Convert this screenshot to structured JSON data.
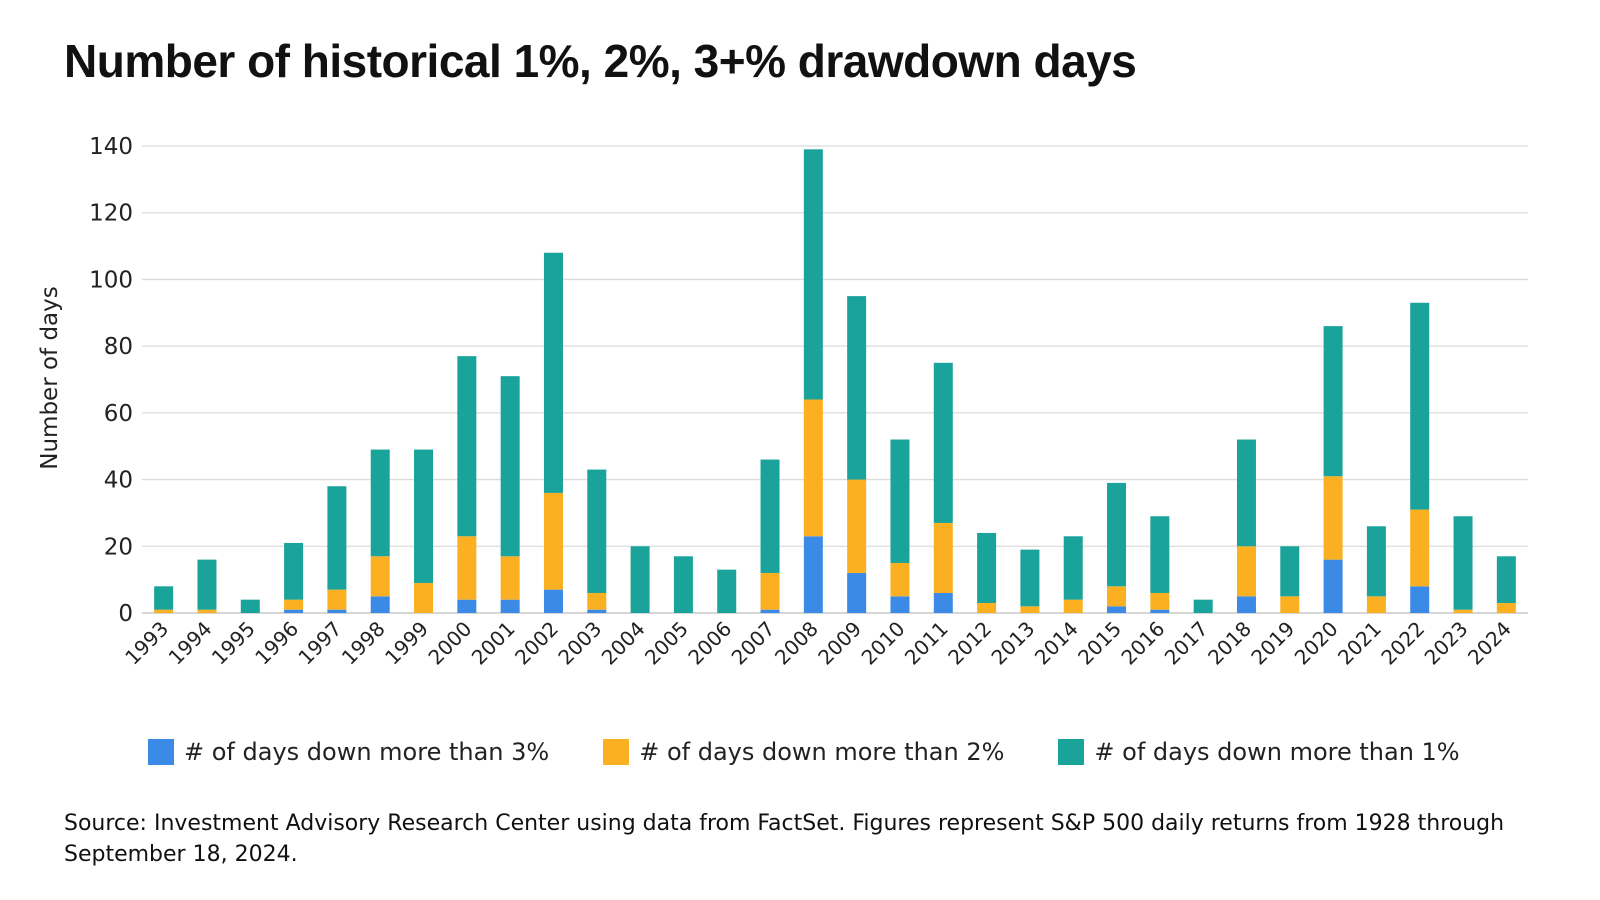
{
  "chart_data": {
    "type": "bar",
    "stacked": true,
    "title": "Number of historical 1%, 2%, 3+% drawdown days",
    "xlabel": "",
    "ylabel": "Number of days",
    "ylim": [
      0,
      140
    ],
    "yticks": [
      0,
      20,
      40,
      60,
      80,
      100,
      120,
      140
    ],
    "grid": true,
    "legend_position": "bottom",
    "categories": [
      "1993",
      "1994",
      "1995",
      "1996",
      "1997",
      "1998",
      "1999",
      "2000",
      "2001",
      "2002",
      "2003",
      "2004",
      "2005",
      "2006",
      "2007",
      "2008",
      "2009",
      "2010",
      "2011",
      "2012",
      "2013",
      "2014",
      "2015",
      "2016",
      "2017",
      "2018",
      "2019",
      "2020",
      "2021",
      "2022",
      "2023",
      "2024"
    ],
    "series": [
      {
        "name": "# of days down more than 3%",
        "color": "#3b8be6",
        "values": [
          0,
          0,
          0,
          1,
          1,
          5,
          0,
          4,
          4,
          7,
          1,
          0,
          0,
          0,
          1,
          23,
          12,
          5,
          6,
          0,
          0,
          0,
          2,
          1,
          0,
          5,
          0,
          16,
          0,
          8,
          0,
          0
        ]
      },
      {
        "name": "# of days down more than 2%",
        "color": "#fbb021",
        "values": [
          1,
          1,
          0,
          3,
          6,
          12,
          9,
          19,
          13,
          29,
          5,
          0,
          0,
          0,
          11,
          41,
          28,
          10,
          21,
          3,
          2,
          4,
          6,
          5,
          0,
          15,
          5,
          25,
          5,
          23,
          1,
          3
        ]
      },
      {
        "name": "# of days down more than 1%",
        "color": "#1aa39a",
        "values": [
          7,
          15,
          4,
          17,
          31,
          32,
          40,
          54,
          54,
          72,
          37,
          20,
          17,
          13,
          34,
          75,
          55,
          37,
          48,
          21,
          17,
          19,
          31,
          23,
          4,
          32,
          15,
          45,
          21,
          62,
          28,
          14
        ]
      }
    ]
  },
  "source_note": "Source: Investment Advisory Research Center using data from FactSet. Figures represent S&P 500 daily returns from 1928 through September 18, 2024."
}
